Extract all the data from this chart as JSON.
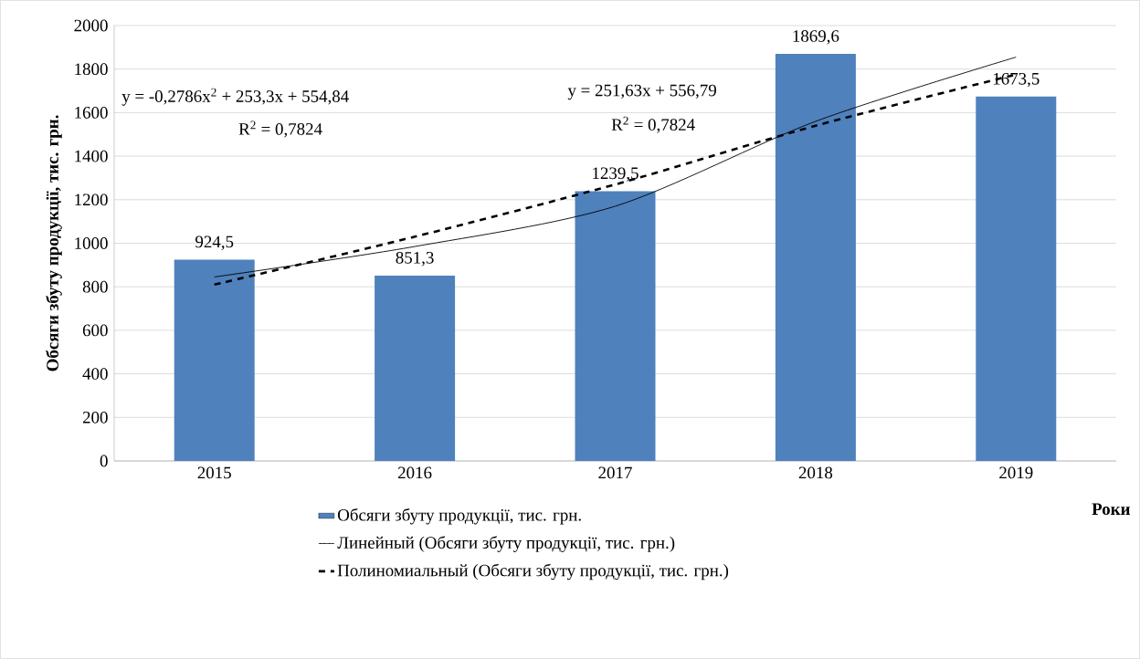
{
  "chart_data": {
    "type": "bar",
    "categories": [
      "2015",
      "2016",
      "2017",
      "2018",
      "2019"
    ],
    "series": [
      {
        "name": "Обсяги збуту продукції, тис. грн.",
        "color": "#4f81bd",
        "values": [
          924.5,
          851.3,
          1239.5,
          1869.6,
          1673.5
        ],
        "value_labels": [
          "924,5",
          "851,3",
          "1239,5",
          "1869,6",
          "1673,5"
        ]
      },
      {
        "name": "Линейный (Обсяги збуту продукції, тис. грн.)",
        "type": "line",
        "color": "#000000",
        "line_style": "solid",
        "values": [
          845,
          985,
          1170,
          1560,
          1855
        ]
      },
      {
        "name": "Полиномиальный (Обсяги збуту продукції, тис. грн.)",
        "type": "line",
        "color": "#000000",
        "line_style": "dashed",
        "values": [
          810,
          1030,
          1270,
          1540,
          1775
        ]
      }
    ],
    "xlabel": "Роки",
    "ylabel": "Обсяги збуту продукції, тис. грн.",
    "ylim": [
      0,
      2000
    ],
    "yticks": [
      0,
      200,
      400,
      600,
      800,
      1000,
      1200,
      1400,
      1600,
      1800,
      2000
    ],
    "grid": "y",
    "legend": "bottom",
    "marker": "none",
    "annotations": [
      "y = -0,2786x$^{2}$ + 253,3x + 554,84",
      "R$^{2}$ = 0,7824",
      "y = 251,63x + 556,79",
      "R$^{2}$ = 0,7824"
    ]
  }
}
